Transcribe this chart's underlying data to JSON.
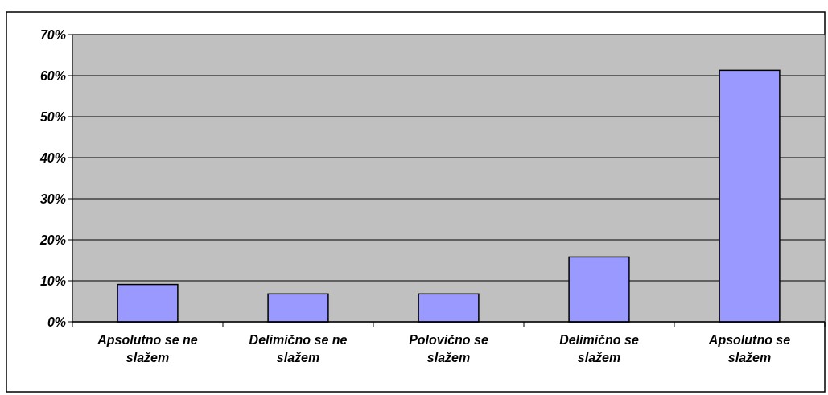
{
  "chart_data": {
    "type": "bar",
    "categories": [
      "Apsolutno se ne slažem",
      "Delimično se ne slažem",
      "Polovično se slažem",
      "Delimično se slažem",
      "Apsolutno se slažem"
    ],
    "values": [
      9.1,
      6.8,
      6.8,
      15.8,
      61.3
    ],
    "color": "#9999ff",
    "ylim": [
      0,
      70
    ],
    "yticks": [
      {
        "value": 0,
        "label": "0%"
      },
      {
        "value": 10,
        "label": "10%"
      },
      {
        "value": 20,
        "label": "20%"
      },
      {
        "value": 30,
        "label": "30%"
      },
      {
        "value": 40,
        "label": "40%"
      },
      {
        "value": 50,
        "label": "50%"
      },
      {
        "value": 60,
        "label": "60%"
      },
      {
        "value": 70,
        "label": "70%"
      }
    ],
    "grid": "y"
  }
}
